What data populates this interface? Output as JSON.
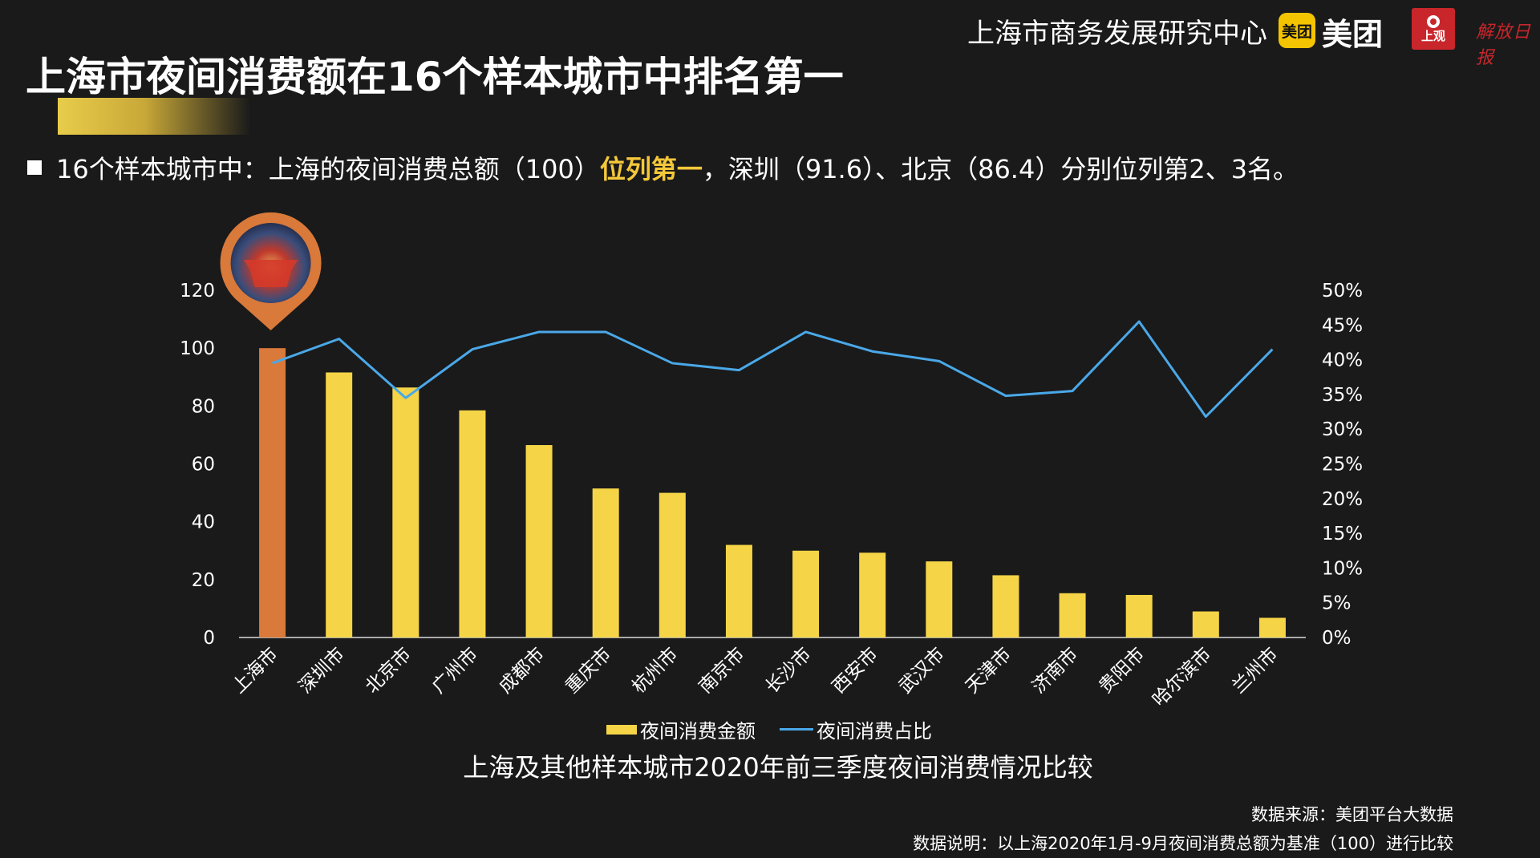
{
  "header": {
    "org": "上海市商务发展研究中心",
    "meituan_badge": "美团",
    "meituan_text": "美团",
    "shangguan": "上观",
    "jiefang": "解放日报"
  },
  "page": {
    "title": "上海市夜间消费额在16个样本城市中排名第一",
    "bullet_before": "16个样本城市中：上海的夜间消费总额（100）",
    "bullet_highlight": "位列第一",
    "bullet_after": "，深圳（91.6）、北京（86.4）分别位列第2、3名。"
  },
  "colors": {
    "background": "#1a1a1a",
    "bar": "#f5d547",
    "bar_highlight": "#d9793a",
    "line": "#4aa8e8",
    "accent": "#f5c83a"
  },
  "chart_data": {
    "type": "bar",
    "title": "上海及其他样本城市2020年前三季度夜间消费情况比较",
    "categories": [
      "上海市",
      "深圳市",
      "北京市",
      "广州市",
      "成都市",
      "重庆市",
      "杭州市",
      "南京市",
      "长沙市",
      "西安市",
      "武汉市",
      "天津市",
      "济南市",
      "贵阳市",
      "哈尔滨市",
      "兰州市"
    ],
    "series": [
      {
        "name": "夜间消费金额",
        "type": "bar",
        "axis": "left",
        "values": [
          100,
          91.6,
          86.4,
          78.5,
          66.5,
          51.5,
          50,
          32,
          30,
          29.3,
          26.3,
          21.5,
          15.3,
          14.7,
          9,
          6.8
        ]
      },
      {
        "name": "夜间消费占比",
        "type": "line",
        "axis": "right",
        "values": [
          39.5,
          43,
          34.5,
          41.5,
          44,
          44,
          39.5,
          38.5,
          44,
          41.2,
          39.8,
          34.8,
          35.5,
          45.5,
          31.8,
          41.5
        ]
      }
    ],
    "y_left": {
      "min": 0,
      "max": 120,
      "ticks": [
        "0",
        "20",
        "40",
        "60",
        "80",
        "100",
        "120"
      ]
    },
    "y_right": {
      "min": 0,
      "max": 50,
      "ticks": [
        "0%",
        "5%",
        "10%",
        "15%",
        "20%",
        "25%",
        "30%",
        "35%",
        "40%",
        "45%",
        "50%"
      ]
    },
    "highlight_index": 0,
    "grid": false,
    "legend_position": "bottom"
  },
  "footer": {
    "source": "数据来源：美团平台大数据",
    "note": "数据说明：以上海2020年1月-9月夜间消费总额为基准（100）进行比较"
  }
}
